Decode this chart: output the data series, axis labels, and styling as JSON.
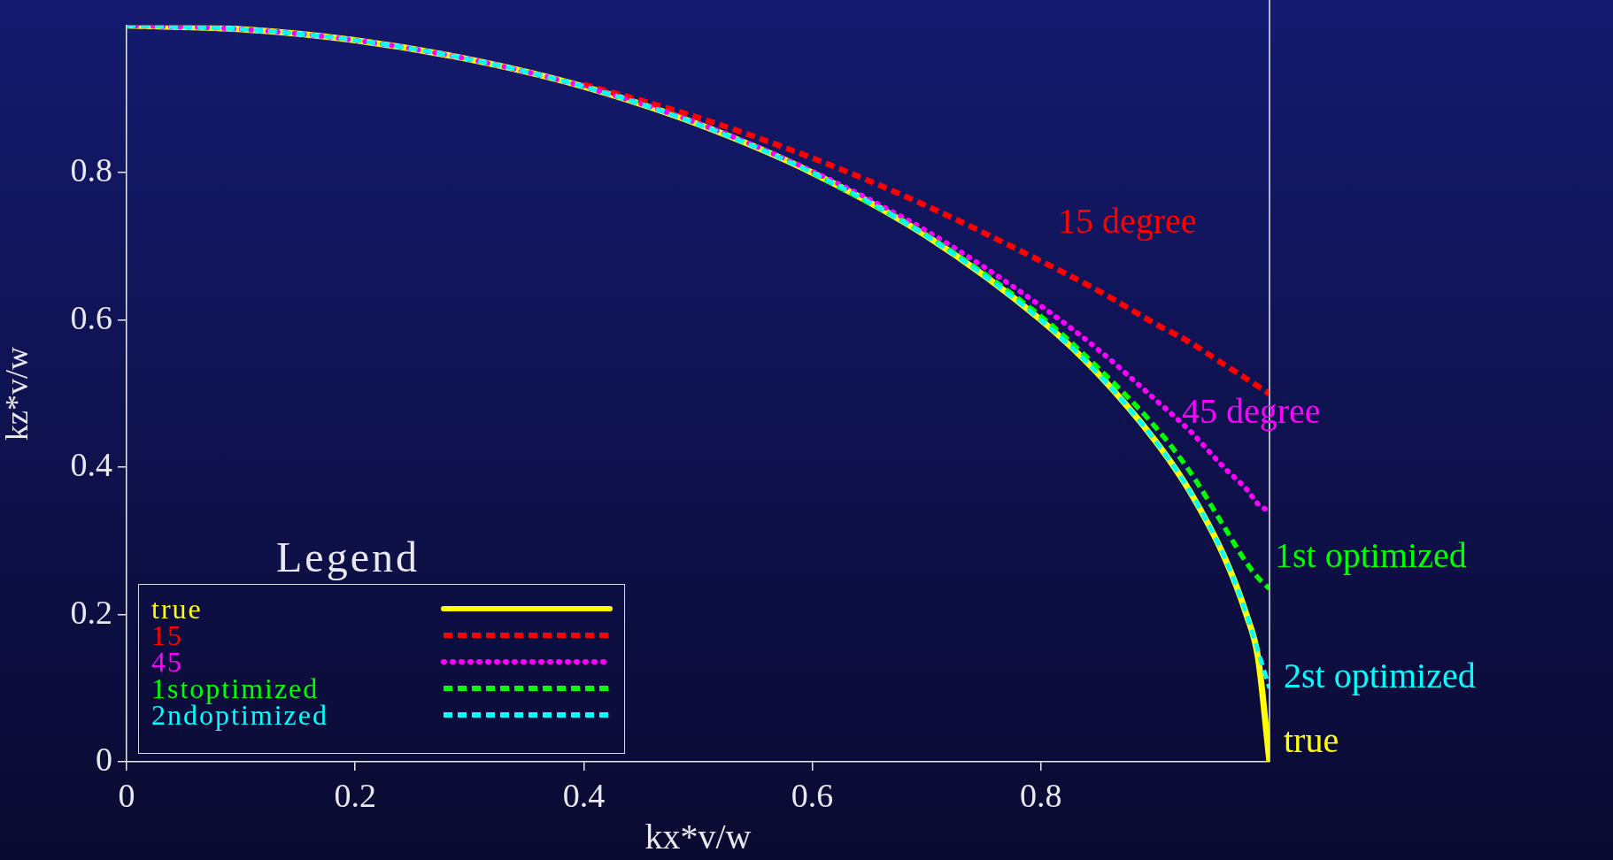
{
  "chart_data": {
    "type": "line",
    "xlabel": "kx*v/w",
    "ylabel": "kz*v/w",
    "legend_title": "Legend",
    "x": [
      0,
      0.1,
      0.2,
      0.3,
      0.4,
      0.5,
      0.6,
      0.7,
      0.8,
      0.85,
      0.9,
      0.93,
      0.96,
      0.98,
      0.99,
      1
    ],
    "series": [
      {
        "name": "true",
        "color": "#ffff00",
        "line_style": "solid",
        "values": [
          1,
          0.995,
          0.98,
          0.954,
          0.917,
          0.866,
          0.8,
          0.714,
          0.6,
          0.527,
          0.436,
          0.368,
          0.28,
          0.199,
          0.141,
          0
        ]
      },
      {
        "name": "15",
        "color": "#ff0000",
        "line_style": "dashed",
        "values": [
          null,
          null,
          null,
          null,
          0.92,
          0.875,
          0.82,
          0.755,
          0.68,
          0.64,
          0.595,
          0.57,
          0.54,
          0.52,
          0.51,
          0.5
        ]
      },
      {
        "name": "45",
        "color": "#ff00ff",
        "line_style": "dotted",
        "values": [
          1,
          0.995,
          0.98,
          0.954,
          0.917,
          0.867,
          0.802,
          0.721,
          0.619,
          0.56,
          0.492,
          0.45,
          0.4,
          0.37,
          0.35,
          0.34
        ]
      },
      {
        "name": "1stoptimized",
        "color": "#00ff00",
        "line_style": "dashed",
        "values": [
          null,
          null,
          null,
          null,
          null,
          null,
          0.8,
          0.715,
          0.605,
          0.535,
          0.455,
          0.395,
          0.32,
          0.27,
          0.25,
          0.235
        ]
      },
      {
        "name": "2ndoptimized",
        "color": "#00ffff",
        "line_style": "dashed",
        "values": [
          1,
          0.995,
          0.98,
          0.954,
          0.917,
          0.866,
          0.8,
          0.714,
          0.6,
          0.527,
          0.436,
          0.368,
          0.28,
          0.2,
          0.15,
          0.1
        ]
      }
    ],
    "xlim": [
      0,
      1
    ],
    "ylim": [
      0,
      1
    ],
    "xticks": [
      0,
      0.2,
      0.4,
      0.6,
      0.8
    ],
    "yticks": [
      0,
      0.2,
      0.4,
      0.6,
      0.8
    ],
    "grid": false,
    "legend": "bottom left",
    "marker": "none",
    "annotations": [
      "15 degree",
      "45 degree",
      "1st optimized",
      "2st optimized",
      "true"
    ]
  }
}
